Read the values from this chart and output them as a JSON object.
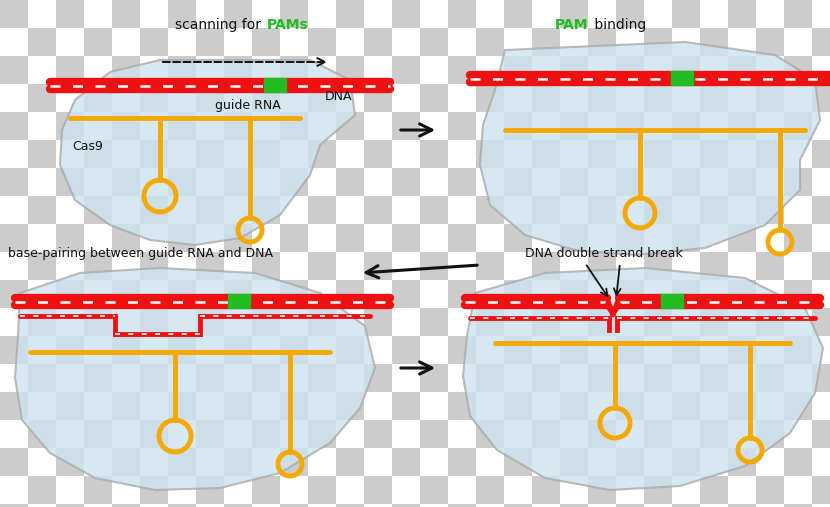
{
  "checker_light": "#cccccc",
  "checker_dark": "#ffffff",
  "checker_size": 28,
  "protein_fill": "#cce4f0",
  "protein_edge": "#aaaaaa",
  "protein_alpha": 0.8,
  "dna_red": "#ee1111",
  "pam_green": "#22bb22",
  "rna_yellow": "#f5a800",
  "arrow_black": "#111111",
  "text_black": "#111111",
  "text_green": "#22bb22",
  "dna_lw": 6,
  "rna_lw": 3.5,
  "arrow_lw": 2.2,
  "title1a": "scanning for ",
  "title1b": "PAMs",
  "title2a": "PAM",
  "title2b": " binding",
  "title3": "base-pairing between guide RNA and DNA",
  "title4": "DNA double strand break",
  "label_dna": "DNA",
  "label_guide_rna": "guide RNA",
  "label_cas9": "Cas9"
}
